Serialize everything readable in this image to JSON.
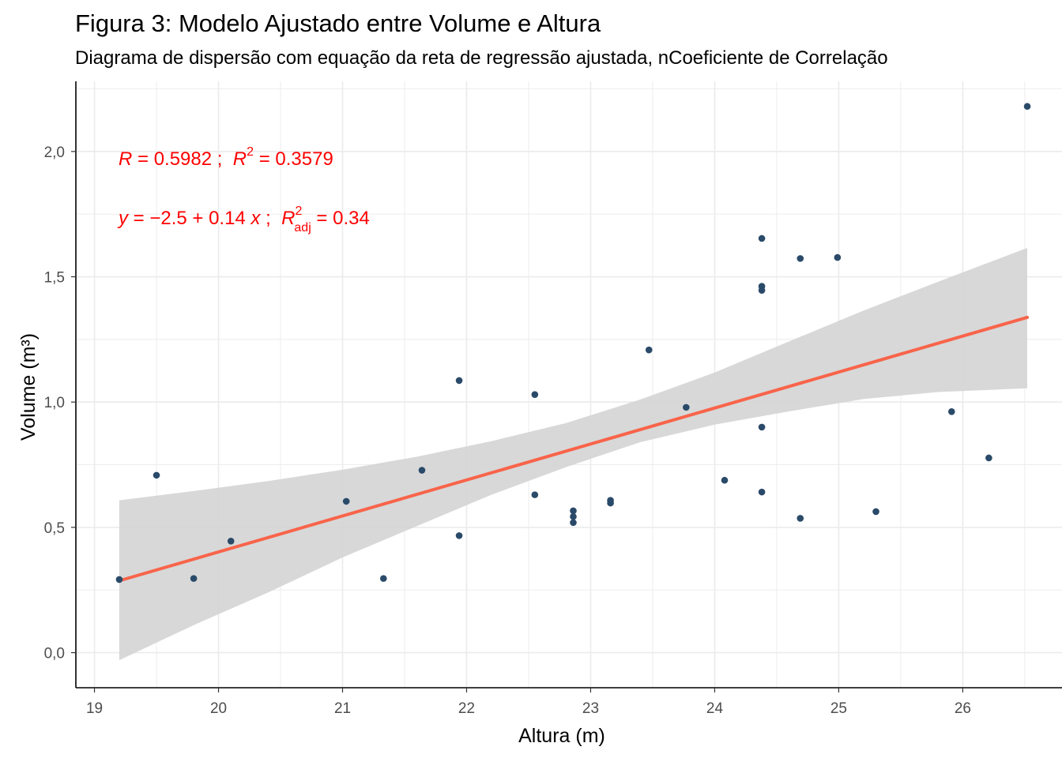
{
  "title": "Figura 3: Modelo Ajustado entre Volume e Altura",
  "subtitle": "Diagrama de dispersão com equação da reta de regressão ajustada, nCoeficiente de Correlação",
  "colors": {
    "points": "#2a4a69",
    "fit_line": "#f8644a",
    "confidence_band": "#d4d4d4",
    "annotation": "#ff0000",
    "grid": "#ebebeb"
  },
  "chart_data": {
    "type": "scatter",
    "title": "Figura 3: Modelo Ajustado entre Volume e Altura",
    "subtitle": "Diagrama de dispersão com equação da reta de regressão ajustada, nCoeficiente de Correlação",
    "xlabel": "Altura (m)",
    "ylabel": "Volume (m³)",
    "xlim": [
      18.85,
      26.8
    ],
    "ylim": [
      -0.14,
      2.28
    ],
    "x_ticks": [
      19,
      20,
      21,
      22,
      23,
      24,
      25,
      26
    ],
    "x_tick_labels": [
      "19",
      "20",
      "21",
      "22",
      "23",
      "24",
      "25",
      "26"
    ],
    "y_ticks": [
      0.0,
      0.5,
      1.0,
      1.5,
      2.0
    ],
    "y_tick_labels": [
      "0,0",
      "0,5",
      "1,0",
      "1,5",
      "2,0"
    ],
    "grid": true,
    "points": [
      {
        "x": 19.2,
        "y": 0.292
      },
      {
        "x": 19.5,
        "y": 0.708
      },
      {
        "x": 19.8,
        "y": 0.296
      },
      {
        "x": 20.1,
        "y": 0.445
      },
      {
        "x": 21.03,
        "y": 0.604
      },
      {
        "x": 21.33,
        "y": 0.296
      },
      {
        "x": 21.64,
        "y": 0.728
      },
      {
        "x": 21.94,
        "y": 1.086
      },
      {
        "x": 21.94,
        "y": 0.467
      },
      {
        "x": 22.55,
        "y": 1.03
      },
      {
        "x": 22.55,
        "y": 0.63
      },
      {
        "x": 22.86,
        "y": 0.566
      },
      {
        "x": 22.86,
        "y": 0.543
      },
      {
        "x": 22.86,
        "y": 0.519
      },
      {
        "x": 23.16,
        "y": 0.608
      },
      {
        "x": 23.16,
        "y": 0.597
      },
      {
        "x": 23.47,
        "y": 1.208
      },
      {
        "x": 23.77,
        "y": 0.979
      },
      {
        "x": 24.08,
        "y": 0.688
      },
      {
        "x": 24.38,
        "y": 1.653
      },
      {
        "x": 24.38,
        "y": 1.462
      },
      {
        "x": 24.38,
        "y": 1.446
      },
      {
        "x": 24.38,
        "y": 0.9
      },
      {
        "x": 24.38,
        "y": 0.641
      },
      {
        "x": 24.69,
        "y": 1.573
      },
      {
        "x": 24.69,
        "y": 0.536
      },
      {
        "x": 24.99,
        "y": 1.577
      },
      {
        "x": 25.3,
        "y": 0.563
      },
      {
        "x": 25.91,
        "y": 0.962
      },
      {
        "x": 26.21,
        "y": 0.777
      },
      {
        "x": 26.52,
        "y": 2.18
      }
    ],
    "fit_line": {
      "x": [
        19.2,
        26.52
      ],
      "y": [
        0.287,
        1.338
      ]
    },
    "confidence_band": {
      "x": [
        19.2,
        19.8,
        20.4,
        21.0,
        21.6,
        22.2,
        22.8,
        23.4,
        24.0,
        24.6,
        25.2,
        25.8,
        26.52
      ],
      "upper": [
        0.608,
        0.645,
        0.685,
        0.73,
        0.782,
        0.844,
        0.916,
        1.01,
        1.118,
        1.242,
        1.365,
        1.48,
        1.615
      ],
      "lower": [
        -0.03,
        0.11,
        0.24,
        0.38,
        0.505,
        0.63,
        0.74,
        0.84,
        0.91,
        0.963,
        1.012,
        1.04,
        1.055
      ]
    },
    "annotations": {
      "line1": {
        "R": "R",
        "eq1": " = 0.5982 ;  ",
        "R2": "R",
        "sup": "2",
        "eq2": " = 0.3579"
      },
      "line2": {
        "y": "y",
        "eq1": " = −2.5 + 0.14 ",
        "x": "x",
        "sep": " ;  ",
        "R": "R",
        "sup": "2",
        "sub": "adj",
        "eq2": " = 0.34"
      }
    }
  }
}
